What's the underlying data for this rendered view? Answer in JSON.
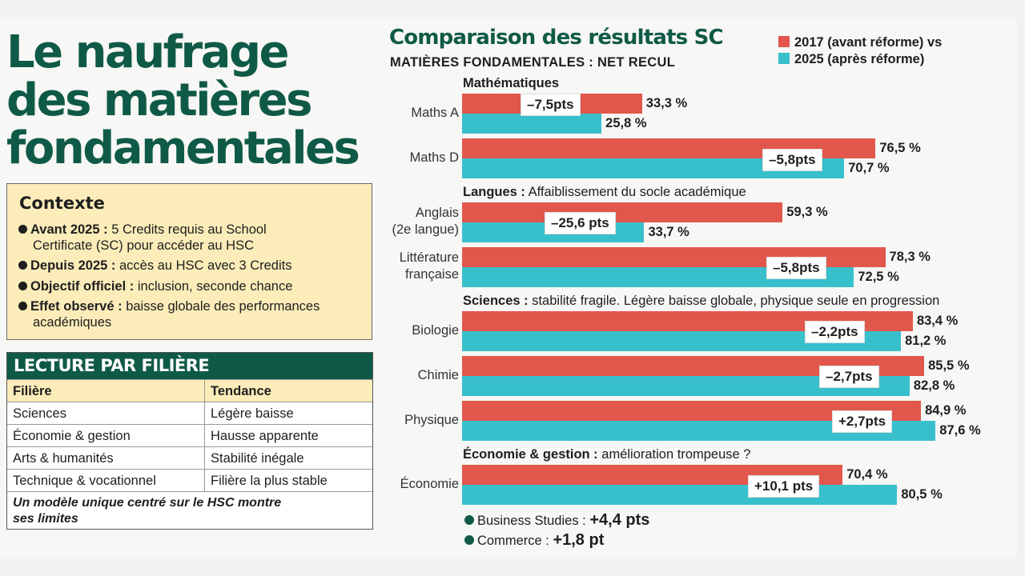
{
  "left": {
    "title_lines": [
      "Le naufrage",
      "des matières",
      "fondamentales"
    ],
    "context": {
      "heading": "Contexte",
      "items": [
        {
          "bold": "Avant 2025 :",
          "text1": " 5 Credits requis au School",
          "text2": "Certificate (SC) pour accéder au HSC"
        },
        {
          "bold": "Depuis 2025 :",
          "text1": " accès au HSC avec 3 Credits",
          "text2": ""
        },
        {
          "bold": "Objectif officiel :",
          "text1": " inclusion, seconde chance",
          "text2": ""
        },
        {
          "bold": "Effet observé :",
          "text1": " baisse globale des performances",
          "text2": "académiques"
        }
      ]
    },
    "filiere": {
      "heading": "LECTURE PAR FILIÈRE",
      "col1": "Filière",
      "col2": "Tendance",
      "rows": [
        {
          "f": "Sciences",
          "t": "Légère baisse"
        },
        {
          "f": "Économie & gestion",
          "t": "Hausse apparente"
        },
        {
          "f": "Arts & humanités",
          "t": "Stabilité inégale"
        },
        {
          "f": "Technique & vocationnel",
          "t": "Filière la plus stable"
        }
      ],
      "note_line1": "Un modèle unique centré sur le HSC montre",
      "note_line2": "ses limites"
    }
  },
  "chart_data": {
    "type": "bar",
    "orientation": "horizontal",
    "title": "Comparaison des résultats SC",
    "subtitle": "MATIÈRES FONDAMENTALES : NET RECUL",
    "legend": [
      "2017 (avant réforme) vs",
      "2025 (après réforme)"
    ],
    "colors": {
      "y2017": "#e2574c",
      "y2025": "#38bfcc",
      "accent": "#0f5a46"
    },
    "xlim": [
      0,
      100
    ],
    "sections": [
      {
        "bold": "Mathématiques",
        "rest": ""
      },
      {
        "bold": "Langues :",
        "rest": " Affaiblissement du socle académique"
      },
      {
        "bold": "Sciences :",
        "rest": " stabilité fragile. Légère baisse globale, physique seule en progression"
      },
      {
        "bold": "Économie & gestion :",
        "rest": " amélioration trompeuse ?"
      }
    ],
    "categories": [
      {
        "name": "Maths A",
        "v2017": 33.3,
        "v2025": 25.8,
        "l2017": "33,3 %",
        "l2025": "25,8 %",
        "diff": "–7,5pts"
      },
      {
        "name": "Maths D",
        "v2017": 76.5,
        "v2025": 70.7,
        "l2017": "76,5 %",
        "l2025": "70,7 %",
        "diff": "–5,8pts"
      },
      {
        "name": "Anglais",
        "name2": "(2e langue)",
        "v2017": 59.3,
        "v2025": 33.7,
        "l2017": "59,3 %",
        "l2025": "33,7 %",
        "diff": "–25,6 pts"
      },
      {
        "name": "Littérature",
        "name2": "française",
        "v2017": 78.3,
        "v2025": 72.5,
        "l2017": "78,3 %",
        "l2025": "72,5 %",
        "diff": "–5,8pts"
      },
      {
        "name": "Biologie",
        "v2017": 83.4,
        "v2025": 81.2,
        "l2017": "83,4 %",
        "l2025": "81,2 %",
        "diff": "–2,2pts"
      },
      {
        "name": "Chimie",
        "v2017": 85.5,
        "v2025": 82.8,
        "l2017": "85,5 %",
        "l2025": "82,8 %",
        "diff": "–2,7pts"
      },
      {
        "name": "Physique",
        "v2017": 84.9,
        "v2025": 87.6,
        "l2017": "84,9 %",
        "l2025": "87,6 %",
        "diff": "+2,7pts"
      },
      {
        "name": "Économie",
        "v2017": 70.4,
        "v2025": 80.5,
        "l2017": "70,4 %",
        "l2025": "80,5 %",
        "diff": "+10,1 pts"
      }
    ],
    "footnotes": [
      {
        "label": "Business Studies : ",
        "value": "+4,4 pts"
      },
      {
        "label": "Commerce : ",
        "value": "+1,8 pt"
      }
    ]
  }
}
